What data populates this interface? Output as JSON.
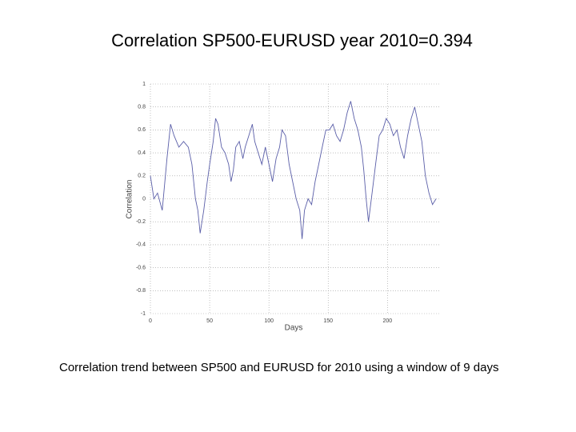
{
  "chart_data": {
    "type": "line",
    "title": "Correlation SP500-EURUSD year 2010=0.394",
    "x_label": "Days",
    "y_label": "Correlation",
    "x": [
      0,
      3,
      6,
      10,
      14,
      17,
      20,
      24,
      28,
      32,
      35,
      38,
      40,
      42,
      45,
      48,
      50,
      53,
      55,
      57,
      60,
      63,
      66,
      68,
      70,
      72,
      75,
      78,
      80,
      83,
      86,
      88,
      91,
      94,
      97,
      100,
      103,
      106,
      109,
      111,
      114,
      117,
      120,
      123,
      126,
      128,
      130,
      133,
      136,
      139,
      142,
      145,
      148,
      151,
      154,
      157,
      160,
      163,
      166,
      169,
      172,
      175,
      178,
      180,
      182,
      184,
      187,
      190,
      193,
      196,
      199,
      202,
      205,
      208,
      211,
      214,
      217,
      220,
      223,
      226,
      229,
      232,
      235,
      238,
      241
    ],
    "values": [
      0.2,
      0.0,
      0.05,
      -0.1,
      0.35,
      0.65,
      0.55,
      0.45,
      0.5,
      0.45,
      0.3,
      0.0,
      -0.1,
      -0.3,
      -0.1,
      0.15,
      0.3,
      0.5,
      0.7,
      0.65,
      0.45,
      0.4,
      0.3,
      0.15,
      0.25,
      0.45,
      0.5,
      0.35,
      0.45,
      0.55,
      0.65,
      0.5,
      0.4,
      0.3,
      0.45,
      0.3,
      0.15,
      0.35,
      0.45,
      0.6,
      0.55,
      0.3,
      0.15,
      0.0,
      -0.1,
      -0.35,
      -0.1,
      0.0,
      -0.05,
      0.15,
      0.3,
      0.45,
      0.6,
      0.6,
      0.65,
      0.55,
      0.5,
      0.6,
      0.75,
      0.85,
      0.7,
      0.6,
      0.45,
      0.25,
      0.0,
      -0.2,
      0.05,
      0.3,
      0.55,
      0.6,
      0.7,
      0.65,
      0.55,
      0.6,
      0.45,
      0.35,
      0.55,
      0.7,
      0.8,
      0.65,
      0.5,
      0.2,
      0.05,
      -0.05,
      0.0
    ],
    "color": "#5a5ea8",
    "xlim": [
      0,
      245
    ],
    "ylim": [
      -1,
      1
    ],
    "xticks": [
      0,
      50,
      100,
      150,
      200
    ],
    "yticks": [
      -1,
      -0.8,
      -0.6,
      -0.4,
      -0.2,
      0,
      0.2,
      0.4,
      0.6,
      0.8,
      1
    ],
    "grid": true
  },
  "caption": "Correlation trend between SP500 and EURUSD for 2010 using a window of 9 days"
}
